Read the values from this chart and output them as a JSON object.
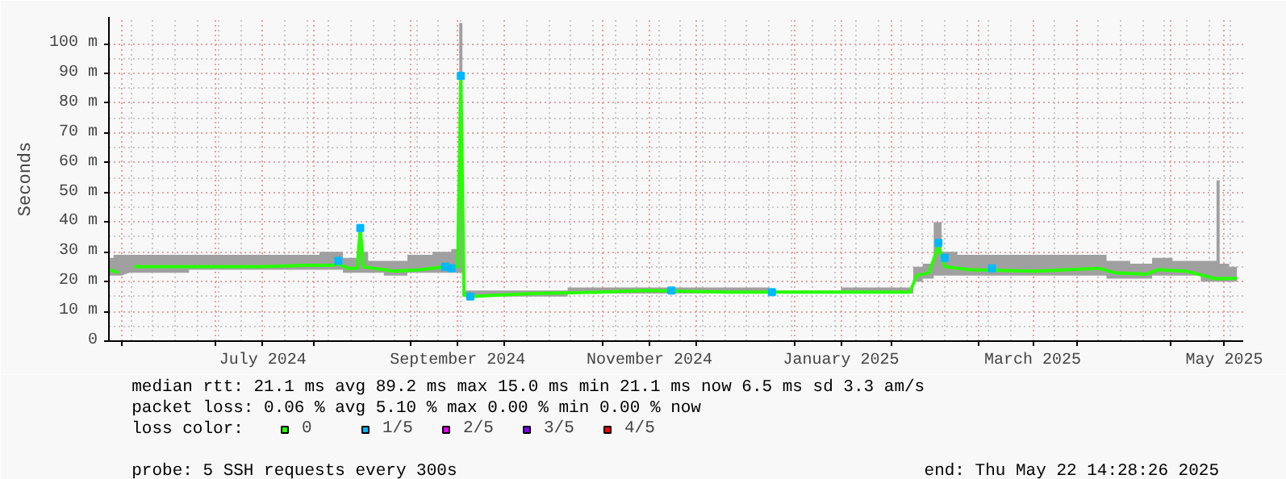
{
  "chart_data": {
    "type": "line",
    "ylabel": "Seconds",
    "legend_title": "loss color:",
    "legend": "bottom left",
    "grid": true,
    "line_style": "solid",
    "marker": "none",
    "xlim": [
      "2024-05-28",
      "2025-05-24"
    ],
    "xticks": [
      {
        "value": "2024-06-01",
        "label": null
      },
      {
        "value": "2024-07-01",
        "label": null
      },
      {
        "value": "2024-08-01",
        "label": null
      },
      {
        "value": "2024-09-01",
        "label": null
      },
      {
        "value": "2024-10-01",
        "label": null
      },
      {
        "value": "2024-11-01",
        "label": null
      },
      {
        "value": "2024-12-01",
        "label": null
      },
      {
        "value": "2025-01-01",
        "label": null
      },
      {
        "value": "2025-02-01",
        "label": null
      },
      {
        "value": "2025-03-01",
        "label": null
      },
      {
        "value": "2025-04-01",
        "label": null
      },
      {
        "value": "2025-05-01",
        "label": null
      },
      {
        "value": "2024-07-16",
        "label": "July 2024"
      },
      {
        "value": "2024-09-16",
        "label": "September 2024"
      },
      {
        "value": "2024-11-16",
        "label": "November 2024"
      },
      {
        "value": "2025-01-16",
        "label": "January 2025"
      },
      {
        "value": "2025-03-18",
        "label": "March 2025"
      },
      {
        "value": "2025-05-18",
        "label": "May 2025"
      }
    ],
    "ylim": [
      0,
      109
    ],
    "yticks": [
      0,
      {
        "value": 10,
        "label": "10 m"
      },
      {
        "value": 20,
        "label": "20 m"
      },
      {
        "value": 30,
        "label": "30 m"
      },
      {
        "value": 40,
        "label": "40 m"
      },
      {
        "value": 50,
        "label": "50 m"
      },
      {
        "value": 60,
        "label": "60 m"
      },
      {
        "value": 70,
        "label": "70 m"
      },
      {
        "value": 80,
        "label": "80 m"
      },
      {
        "value": 90,
        "label": "90 m"
      },
      {
        "value": 100,
        "label": "100 m"
      }
    ],
    "series": [
      {
        "name": "0",
        "color": "#26ff00",
        "x": [
          "2024-05-28",
          "2024-05-31",
          "2024-06-02",
          "2024-06-05",
          "2024-06-14",
          "2024-07-01",
          "2024-07-15",
          "2024-07-30",
          "2024-08-07",
          "2024-08-09",
          "2024-08-12",
          "2024-08-15",
          "2024-08-16",
          "2024-08-17",
          "2024-08-20",
          "2024-08-27",
          "2024-09-04",
          "2024-09-12",
          "2024-09-16",
          "2024-09-17",
          "2024-09-18",
          "2024-09-20",
          "2024-09-30",
          "2024-10-10",
          "2024-11-01",
          "2024-11-15",
          "2024-12-11",
          "2025-01-06",
          "2025-01-26",
          "2025-02-07",
          "2025-02-09",
          "2025-02-13",
          "2025-02-16",
          "2025-02-18",
          "2025-02-26",
          "2025-03-19",
          "2025-04-08",
          "2025-04-13",
          "2025-04-23",
          "2025-04-27",
          "2025-05-06",
          "2025-05-15",
          "2025-05-16",
          "2025-05-17",
          "2025-05-22"
        ],
        "values": [
          24,
          23,
          null,
          25,
          25,
          25,
          25,
          25.5,
          25.5,
          26,
          24.5,
          24.5,
          38,
          25,
          24.5,
          23.5,
          24,
          25,
          25,
          89.2,
          15.5,
          15,
          15.5,
          16,
          16.5,
          17,
          16.5,
          16.5,
          16.5,
          16.5,
          22,
          23,
          32,
          25,
          24,
          23.5,
          24.5,
          23,
          22.5,
          24,
          23.5,
          21,
          21,
          21,
          21.1
        ],
        "lower": [
          22,
          22,
          null,
          23,
          23,
          24,
          24,
          24,
          24,
          24,
          23,
          23,
          23,
          23,
          23,
          22,
          23,
          23,
          23,
          23,
          15,
          15,
          15,
          15,
          16,
          16,
          16,
          16,
          16,
          16,
          20,
          21,
          22,
          22,
          22,
          22,
          22,
          21,
          21,
          22,
          22,
          20,
          20,
          20,
          20
        ],
        "upper": [
          28,
          29,
          null,
          29,
          29,
          29,
          29,
          29,
          30,
          30,
          28,
          28,
          39,
          30,
          27,
          27,
          29,
          30,
          31,
          107,
          17,
          17,
          17,
          17,
          18,
          18,
          18,
          17,
          18,
          18,
          25,
          26,
          40,
          30,
          29,
          29,
          29,
          27,
          26,
          28,
          27,
          27,
          54,
          26,
          25
        ]
      },
      {
        "name": "1/5",
        "color": "#00b8ff",
        "type": "scatter",
        "marker": "square",
        "x": [
          "2024-08-09",
          "2024-08-16",
          "2024-09-12",
          "2024-09-14",
          "2024-09-17",
          "2024-09-20",
          "2024-11-23",
          "2024-12-25",
          "2025-02-16",
          "2025-02-18",
          "2025-03-05"
        ],
        "values": [
          27,
          38,
          25,
          24.5,
          89.2,
          15,
          17,
          16.5,
          33,
          28,
          24.5
        ]
      },
      {
        "name": "2/5",
        "color": "#e600ff",
        "type": "scatter",
        "marker": "square"
      },
      {
        "name": "3/5",
        "color": "#7e00ff",
        "type": "scatter",
        "marker": "square"
      },
      {
        "name": "4/5",
        "color": "#ff0000",
        "type": "scatter",
        "marker": "square"
      }
    ],
    "annotations": [
      "median rtt:  21.1 ms avg  89.2 ms max  15.0 ms min  21.1 ms now  6.5 ms sd  3.3   am/s",
      "packet loss: 0.06 % avg  5.10 % max  0.00 % min  0.00 % now",
      "probe:       5 SSH requests every 300s",
      "end: Thu May 22 14:28:26 2025"
    ]
  }
}
